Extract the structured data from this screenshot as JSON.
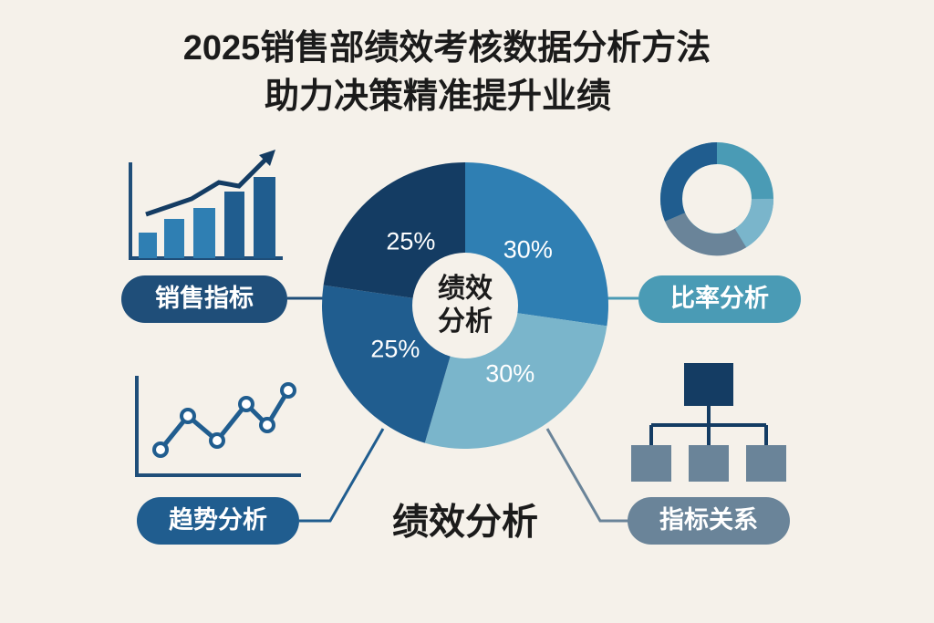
{
  "title": [
    "2025销售部绩效考核数据分析方法",
    "助力决策精准提升业绩"
  ],
  "chart_data": {
    "type": "pie",
    "center_label": [
      "绩效",
      "分析"
    ],
    "values": [
      30,
      30,
      25,
      25
    ],
    "value_labels": [
      "30%",
      "30%",
      "25%",
      "25%"
    ],
    "colors": [
      "#2f7fb3",
      "#7ab5cb",
      "#205d8f",
      "#143c63"
    ]
  },
  "labels": [
    "销售指标",
    "比率分析",
    "趋势分析",
    "指标关系"
  ],
  "footer": "绩效分析"
}
